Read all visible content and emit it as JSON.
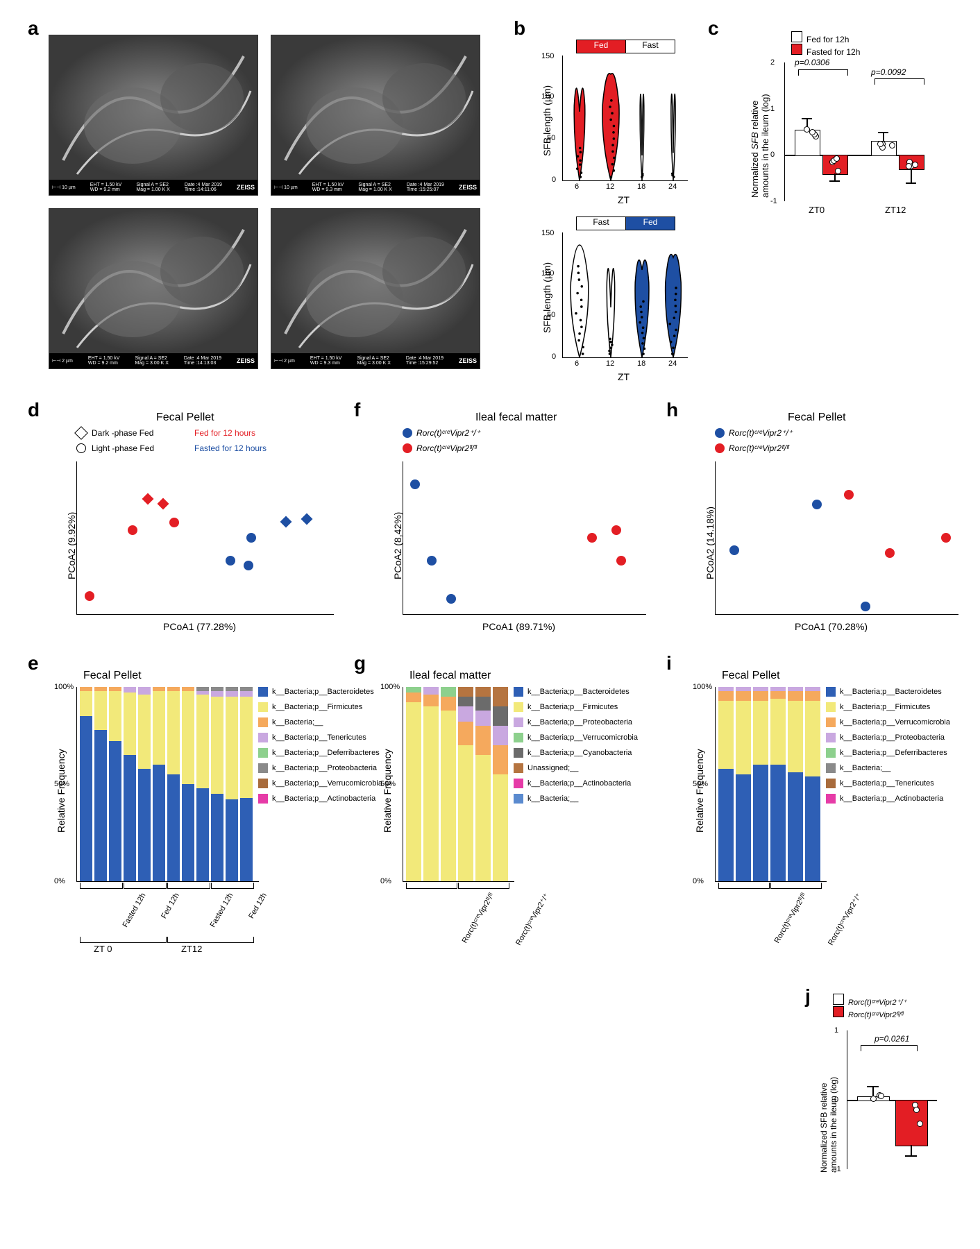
{
  "labels": {
    "a": "a",
    "b": "b",
    "c": "c",
    "d": "d",
    "e": "e",
    "f": "f",
    "g": "g",
    "h": "h",
    "i": "i",
    "j": "j"
  },
  "colors": {
    "red": "#e31e24",
    "blue": "#1e4fa3",
    "white": "#ffffff",
    "black": "#000000",
    "bacteroidetes": "#2e5fb5",
    "firmicutes": "#f2e97a",
    "bacteria": "#f5a95d",
    "tenericutes": "#c9a8e0",
    "deferribacteres": "#8dd08d",
    "proteobacteria": "#8a8a8a",
    "verrucomicrobia": "#a86b3c",
    "actinobacteria": "#e63ba7",
    "cyanobacteria": "#6b6b6b",
    "unassigned": "#b57440"
  },
  "panel_a": {
    "sem_meta": [
      {
        "scale": "10 µm",
        "eht": "EHT = 1.50 kV",
        "wd": "WD = 9.2 mm",
        "sig": "Signal A = SE2",
        "mag": "Mag = 1.00 K X",
        "date": "Date :4 Mar 2019",
        "time": "Time :14:11:06"
      },
      {
        "scale": "10 µm",
        "eht": "EHT = 1.50 kV",
        "wd": "WD = 9.3 mm",
        "sig": "Signal A = SE2",
        "mag": "Mag = 1.00 K X",
        "date": "Date :4 Mar 2019",
        "time": "Time :15:25:07"
      },
      {
        "scale": "2 µm",
        "eht": "EHT = 1.50 kV",
        "wd": "WD = 9.2 mm",
        "sig": "Signal A = SE2",
        "mag": "Mag = 3.00 K X",
        "date": "Date :4 Mar 2019",
        "time": "Time :14:13:03"
      },
      {
        "scale": "2 µm",
        "eht": "EHT = 1.50 kV",
        "wd": "WD = 9.3 mm",
        "sig": "Signal A = SE2",
        "mag": "Mag = 3.00 K X",
        "date": "Date :4 Mar 2019",
        "time": "Time :15:29:52"
      }
    ]
  },
  "panel_b": {
    "ylabel": "SFB length (µm)",
    "xlabel": "ZT",
    "top_legend": [
      "Fed",
      "Fast"
    ],
    "bottom_legend": [
      "Fast",
      "Fed"
    ],
    "xticks": [
      "6",
      "12",
      "18",
      "24"
    ],
    "ymax": 150,
    "top_colors": [
      "#e31e24",
      "#e31e24",
      "#ffffff",
      "#ffffff"
    ],
    "bottom_colors": [
      "#ffffff",
      "#ffffff",
      "#1e4fa3",
      "#1e4fa3"
    ]
  },
  "panel_c": {
    "ylabel": "Normalized SFB relative\namounts in the ileum (log)",
    "legend": [
      "Fed for 12h",
      "Fasted for 12h"
    ],
    "xticks": [
      "ZT0",
      "ZT12"
    ],
    "pvals": [
      "p=0.0306",
      "p=0.0092"
    ],
    "bars": [
      {
        "group": "ZT0",
        "fill": "#ffffff",
        "val": 0.55,
        "err": 0.25
      },
      {
        "group": "ZT0",
        "fill": "#e31e24",
        "val": -0.4,
        "err": 0.15
      },
      {
        "group": "ZT12",
        "fill": "#ffffff",
        "val": 0.3,
        "err": 0.2
      },
      {
        "group": "ZT12",
        "fill": "#e31e24",
        "val": -0.3,
        "err": 0.3
      }
    ],
    "yrange": [
      -1,
      2
    ]
  },
  "panel_d": {
    "title": "Fecal Pellet",
    "legend_shapes": [
      "Dark -phase Fed",
      "Light -phase Fed"
    ],
    "legend_colors": [
      "Fed for 12 hours",
      "Fasted for 12 hours"
    ],
    "xlabel": "PCoA1 (77.28%)",
    "ylabel": "PCoA2 (9.92%)",
    "points": [
      {
        "x": 0.05,
        "y": 0.12,
        "color": "#e31e24",
        "shape": "circle"
      },
      {
        "x": 0.22,
        "y": 0.55,
        "color": "#e31e24",
        "shape": "circle"
      },
      {
        "x": 0.28,
        "y": 0.75,
        "color": "#e31e24",
        "shape": "diamond"
      },
      {
        "x": 0.34,
        "y": 0.72,
        "color": "#e31e24",
        "shape": "diamond"
      },
      {
        "x": 0.38,
        "y": 0.6,
        "color": "#e31e24",
        "shape": "circle"
      },
      {
        "x": 0.6,
        "y": 0.35,
        "color": "#1e4fa3",
        "shape": "circle"
      },
      {
        "x": 0.67,
        "y": 0.32,
        "color": "#1e4fa3",
        "shape": "circle"
      },
      {
        "x": 0.68,
        "y": 0.5,
        "color": "#1e4fa3",
        "shape": "circle"
      },
      {
        "x": 0.82,
        "y": 0.6,
        "color": "#1e4fa3",
        "shape": "diamond"
      },
      {
        "x": 0.9,
        "y": 0.62,
        "color": "#1e4fa3",
        "shape": "diamond"
      }
    ]
  },
  "panel_e": {
    "title": "Fecal Pellet",
    "ylabel": "Relative Frequency",
    "yticks": [
      "0%",
      "50%",
      "100%"
    ],
    "groups": [
      "Fasted 12h",
      "Fed 12h",
      "Fasted 12h",
      "Fed 12h"
    ],
    "subgroups": [
      "ZT 0",
      "ZT12"
    ],
    "legend": [
      "k__Bacteria;p__Bacteroidetes",
      "k__Bacteria;p__Firmicutes",
      "k__Bacteria;__",
      "k__Bacteria;p__Tenericutes",
      "k__Bacteria;p__Deferribacteres",
      "k__Bacteria;p__Proteobacteria",
      "k__Bacteria;p__Verrucomicrobia",
      "k__Bacteria;p__Actinobacteria"
    ],
    "legend_colors": [
      "#2e5fb5",
      "#f2e97a",
      "#f5a95d",
      "#c9a8e0",
      "#8dd08d",
      "#8a8a8a",
      "#a86b3c",
      "#e63ba7"
    ],
    "bars": [
      [
        {
          "c": "#2e5fb5",
          "v": 85
        },
        {
          "c": "#f2e97a",
          "v": 13
        },
        {
          "c": "#f5a95d",
          "v": 2
        }
      ],
      [
        {
          "c": "#2e5fb5",
          "v": 78
        },
        {
          "c": "#f2e97a",
          "v": 20
        },
        {
          "c": "#f5a95d",
          "v": 2
        }
      ],
      [
        {
          "c": "#2e5fb5",
          "v": 72
        },
        {
          "c": "#f2e97a",
          "v": 26
        },
        {
          "c": "#f5a95d",
          "v": 2
        }
      ],
      [
        {
          "c": "#2e5fb5",
          "v": 65
        },
        {
          "c": "#f2e97a",
          "v": 32
        },
        {
          "c": "#c9a8e0",
          "v": 3
        }
      ],
      [
        {
          "c": "#2e5fb5",
          "v": 58
        },
        {
          "c": "#f2e97a",
          "v": 38
        },
        {
          "c": "#c9a8e0",
          "v": 4
        }
      ],
      [
        {
          "c": "#2e5fb5",
          "v": 60
        },
        {
          "c": "#f2e97a",
          "v": 38
        },
        {
          "c": "#f5a95d",
          "v": 2
        }
      ],
      [
        {
          "c": "#2e5fb5",
          "v": 55
        },
        {
          "c": "#f2e97a",
          "v": 43
        },
        {
          "c": "#f5a95d",
          "v": 2
        }
      ],
      [
        {
          "c": "#2e5fb5",
          "v": 50
        },
        {
          "c": "#f2e97a",
          "v": 48
        },
        {
          "c": "#f5a95d",
          "v": 2
        }
      ],
      [
        {
          "c": "#2e5fb5",
          "v": 48
        },
        {
          "c": "#f2e97a",
          "v": 48
        },
        {
          "c": "#c9a8e0",
          "v": 2
        },
        {
          "c": "#8a8a8a",
          "v": 2
        }
      ],
      [
        {
          "c": "#2e5fb5",
          "v": 45
        },
        {
          "c": "#f2e97a",
          "v": 50
        },
        {
          "c": "#c9a8e0",
          "v": 3
        },
        {
          "c": "#8a8a8a",
          "v": 2
        }
      ],
      [
        {
          "c": "#2e5fb5",
          "v": 42
        },
        {
          "c": "#f2e97a",
          "v": 53
        },
        {
          "c": "#c9a8e0",
          "v": 3
        },
        {
          "c": "#8a8a8a",
          "v": 2
        }
      ],
      [
        {
          "c": "#2e5fb5",
          "v": 43
        },
        {
          "c": "#f2e97a",
          "v": 52
        },
        {
          "c": "#c9a8e0",
          "v": 3
        },
        {
          "c": "#8a8a8a",
          "v": 2
        }
      ]
    ]
  },
  "panel_f": {
    "title": "Ileal fecal matter",
    "legend": [
      "Rorc(t)ᶜʳᵉVipr2⁺/⁺",
      "Rorc(t)ᶜʳᵉVipr2ᶠˡ/ᶠˡ"
    ],
    "xlabel": "PCoA1 (89.71%)",
    "ylabel": "PCoA2 (8,42%)",
    "points": [
      {
        "x": 0.05,
        "y": 0.85,
        "color": "#1e4fa3"
      },
      {
        "x": 0.12,
        "y": 0.35,
        "color": "#1e4fa3"
      },
      {
        "x": 0.2,
        "y": 0.1,
        "color": "#1e4fa3"
      },
      {
        "x": 0.78,
        "y": 0.5,
        "color": "#e31e24"
      },
      {
        "x": 0.88,
        "y": 0.55,
        "color": "#e31e24"
      },
      {
        "x": 0.9,
        "y": 0.35,
        "color": "#e31e24"
      }
    ]
  },
  "panel_g": {
    "title": "Ileal fecal matter",
    "ylabel": "Relative Frequency",
    "yticks": [
      "0%",
      "50%",
      "100%"
    ],
    "legend": [
      "k__Bacteria;p__Bacteroidetes",
      "k__Bacteria;p__Firmicutes",
      "k__Bacteria;p__Proteobacteria",
      "k__Bacteria;p__Verrucomicrobia",
      "k__Bacteria;p__Cyanobacteria",
      "Unassigned;__",
      "k__Bacteria;p__Actinobacteria",
      "k__Bacteria;__"
    ],
    "legend_colors": [
      "#2e5fb5",
      "#f2e97a",
      "#c9a8e0",
      "#8dd08d",
      "#6b6b6b",
      "#b57440",
      "#e63ba7",
      "#5a8acf"
    ],
    "groups": [
      "Rorc(t)ᶜʳᵉVipr2ᶠˡ/ᶠˡ",
      "Rorc(t)ᶜʳᵉVipr2⁺/⁺"
    ],
    "bars": [
      [
        {
          "c": "#f2e97a",
          "v": 92
        },
        {
          "c": "#f5a95d",
          "v": 5
        },
        {
          "c": "#8dd08d",
          "v": 3
        }
      ],
      [
        {
          "c": "#f2e97a",
          "v": 90
        },
        {
          "c": "#f5a95d",
          "v": 6
        },
        {
          "c": "#c9a8e0",
          "v": 4
        }
      ],
      [
        {
          "c": "#f2e97a",
          "v": 88
        },
        {
          "c": "#f5a95d",
          "v": 7
        },
        {
          "c": "#8dd08d",
          "v": 5
        }
      ],
      [
        {
          "c": "#f2e97a",
          "v": 70
        },
        {
          "c": "#f5a95d",
          "v": 12
        },
        {
          "c": "#c9a8e0",
          "v": 8
        },
        {
          "c": "#6b6b6b",
          "v": 5
        },
        {
          "c": "#b57440",
          "v": 5
        }
      ],
      [
        {
          "c": "#f2e97a",
          "v": 65
        },
        {
          "c": "#f5a95d",
          "v": 15
        },
        {
          "c": "#c9a8e0",
          "v": 8
        },
        {
          "c": "#6b6b6b",
          "v": 7
        },
        {
          "c": "#b57440",
          "v": 5
        }
      ],
      [
        {
          "c": "#f2e97a",
          "v": 55
        },
        {
          "c": "#f5a95d",
          "v": 15
        },
        {
          "c": "#c9a8e0",
          "v": 10
        },
        {
          "c": "#6b6b6b",
          "v": 10
        },
        {
          "c": "#b57440",
          "v": 10
        }
      ]
    ]
  },
  "panel_h": {
    "title": "Fecal Pellet",
    "legend": [
      "Rorc(t)ᶜʳᵉVipr2⁺/⁺",
      "Rorc(t)ᶜʳᵉVipr2ᶠˡ/ᶠˡ"
    ],
    "xlabel": "PCoA1 (70.28%)",
    "ylabel": "PCoA2 (14.18%)",
    "points": [
      {
        "x": 0.08,
        "y": 0.42,
        "color": "#1e4fa3"
      },
      {
        "x": 0.42,
        "y": 0.72,
        "color": "#1e4fa3"
      },
      {
        "x": 0.62,
        "y": 0.05,
        "color": "#1e4fa3"
      },
      {
        "x": 0.55,
        "y": 0.78,
        "color": "#e31e24"
      },
      {
        "x": 0.72,
        "y": 0.4,
        "color": "#e31e24"
      },
      {
        "x": 0.95,
        "y": 0.5,
        "color": "#e31e24"
      }
    ]
  },
  "panel_i": {
    "title": "Fecal Pellet",
    "ylabel": "Relative Frequency",
    "yticks": [
      "0%",
      "50%",
      "100%"
    ],
    "legend": [
      "k__Bacteria;p__Bacteroidetes",
      "k__Bacteria;p__Firmicutes",
      "k__Bacteria;p__Verrucomicrobia",
      "k__Bacteria;p__Proteobacteria",
      "k__Bacteria;p__Deferribacteres",
      "k__Bacteria;__",
      "k__Bacteria;p__Tenericutes",
      "k__Bacteria;p__Actinobacteria"
    ],
    "legend_colors": [
      "#2e5fb5",
      "#f2e97a",
      "#f5a95d",
      "#c9a8e0",
      "#8dd08d",
      "#8a8a8a",
      "#a86b3c",
      "#e63ba7"
    ],
    "groups": [
      "Rorc(t)ᶜʳᵉVipr2ᶠˡ/ᶠˡ",
      "Rorc(t)ᶜʳᵉVipr2⁺/⁺"
    ],
    "bars": [
      [
        {
          "c": "#2e5fb5",
          "v": 58
        },
        {
          "c": "#f2e97a",
          "v": 35
        },
        {
          "c": "#f5a95d",
          "v": 5
        },
        {
          "c": "#c9a8e0",
          "v": 2
        }
      ],
      [
        {
          "c": "#2e5fb5",
          "v": 55
        },
        {
          "c": "#f2e97a",
          "v": 38
        },
        {
          "c": "#f5a95d",
          "v": 5
        },
        {
          "c": "#c9a8e0",
          "v": 2
        }
      ],
      [
        {
          "c": "#2e5fb5",
          "v": 60
        },
        {
          "c": "#f2e97a",
          "v": 33
        },
        {
          "c": "#f5a95d",
          "v": 5
        },
        {
          "c": "#c9a8e0",
          "v": 2
        }
      ],
      [
        {
          "c": "#2e5fb5",
          "v": 60
        },
        {
          "c": "#f2e97a",
          "v": 34
        },
        {
          "c": "#f5a95d",
          "v": 4
        },
        {
          "c": "#c9a8e0",
          "v": 2
        }
      ],
      [
        {
          "c": "#2e5fb5",
          "v": 56
        },
        {
          "c": "#f2e97a",
          "v": 37
        },
        {
          "c": "#f5a95d",
          "v": 5
        },
        {
          "c": "#c9a8e0",
          "v": 2
        }
      ],
      [
        {
          "c": "#2e5fb5",
          "v": 54
        },
        {
          "c": "#f2e97a",
          "v": 39
        },
        {
          "c": "#f5a95d",
          "v": 5
        },
        {
          "c": "#c9a8e0",
          "v": 2
        }
      ]
    ]
  },
  "panel_j": {
    "legend": [
      "Rorc(t)ᶜʳᵉVipr2⁺/⁺",
      "Rorc(t)ᶜʳᵉVipr2ᶠˡ/ᶠˡ"
    ],
    "ylabel": "Normalized SFB relative\namounts in the ileum (log)",
    "pval": "p=0.0261",
    "yrange": [
      -1,
      1
    ],
    "bars": [
      {
        "fill": "#ffffff",
        "val": 0.05,
        "err": 0.15
      },
      {
        "fill": "#e31e24",
        "val": -0.65,
        "err": 0.15
      }
    ]
  }
}
